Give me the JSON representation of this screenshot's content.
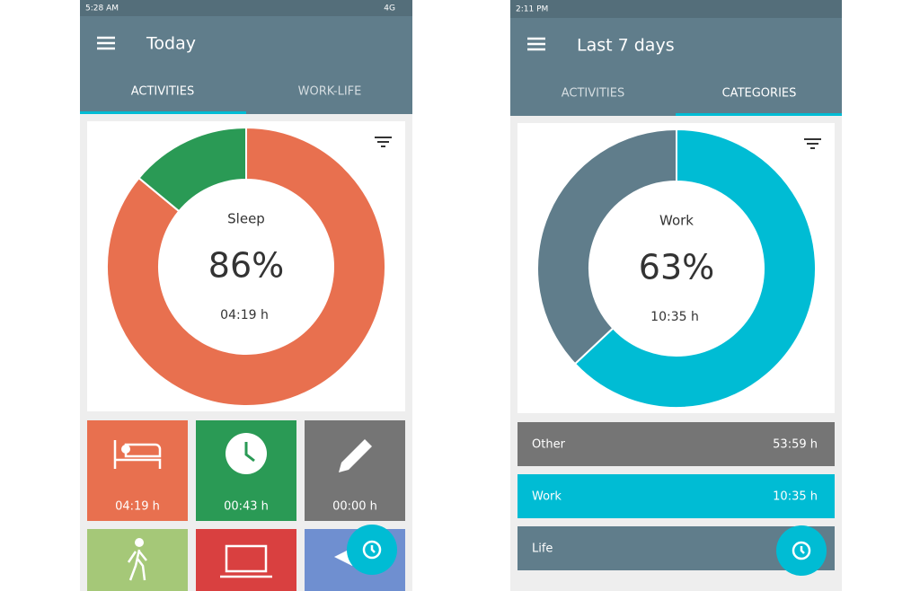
{
  "screens": [
    {
      "status_time": "5:28 AM",
      "network": "4G",
      "title": "Today",
      "tabs": [
        "ACTIVITIES",
        "WORK-LIFE"
      ],
      "donut": {
        "label": "Sleep",
        "value": 86,
        "value_label": "86%",
        "time": "04:19 h"
      },
      "tiles": [
        "04:19 h",
        "00:43 h",
        "00:00 h"
      ]
    },
    {
      "status_time": "2:11 PM",
      "title": "Last 7 days",
      "tabs": [
        "ACTIVITIES",
        "CATEGORIES"
      ],
      "donut": {
        "label": "Work",
        "value": 63,
        "value_label": "63%",
        "time": "10:35 h"
      },
      "rows": [
        {
          "name": "Other",
          "time": "53:59 h"
        },
        {
          "name": "Work",
          "time": "10:35 h"
        },
        {
          "name": "Life"
        }
      ]
    }
  ]
}
